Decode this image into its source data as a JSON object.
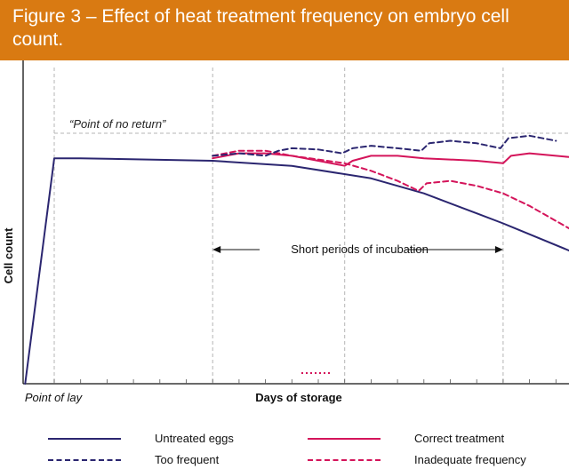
{
  "title": "Figure 3 – Effect of heat treatment frequency on embryo cell count.",
  "colors": {
    "title_bg": "#d97a12",
    "navy": "#2b2670",
    "red": "#d4145a",
    "grid": "#b5b5b5"
  },
  "chart_data": {
    "type": "line",
    "title": "Figure 3 – Effect of heat treatment frequency on embryo cell count.",
    "xlabel": "Days of storage",
    "ylabel": "Cell count",
    "x_tick_label": "Point of lay",
    "xlim": [
      0,
      20
    ],
    "ylim": [
      0,
      100
    ],
    "threshold": {
      "label": "“Point of no return”",
      "y": 100
    },
    "annotation": {
      "label": "Short periods of incubation",
      "x_start": 6,
      "x_end": 17
    },
    "grid": true,
    "legend_position": "bottom",
    "series": [
      {
        "name": "Untreated eggs",
        "color": "#2b2670",
        "dash": "solid",
        "points": [
          [
            -1.1,
            0
          ],
          [
            0,
            90
          ],
          [
            1,
            90
          ],
          [
            6,
            89
          ],
          [
            9,
            87
          ],
          [
            12,
            82
          ],
          [
            14,
            76
          ],
          [
            16,
            68
          ],
          [
            17,
            64
          ],
          [
            20,
            51
          ]
        ]
      },
      {
        "name": "Correct treatment",
        "color": "#d4145a",
        "dash": "solid",
        "points": [
          [
            6,
            90
          ],
          [
            7,
            92
          ],
          [
            8,
            92
          ],
          [
            9,
            91
          ],
          [
            10,
            89
          ],
          [
            11,
            87
          ],
          [
            11.3,
            89
          ],
          [
            12,
            91
          ],
          [
            13,
            91
          ],
          [
            14,
            90
          ],
          [
            16,
            89
          ],
          [
            17,
            88
          ],
          [
            17.3,
            91
          ],
          [
            18,
            92
          ],
          [
            19,
            91
          ],
          [
            20,
            90
          ]
        ]
      },
      {
        "name": "Too frequent",
        "color": "#2b2670",
        "dash": "dashed",
        "points": [
          [
            6,
            91
          ],
          [
            7,
            92
          ],
          [
            8,
            91
          ],
          [
            8.5,
            93
          ],
          [
            9,
            94
          ],
          [
            10,
            93.5
          ],
          [
            10.9,
            92
          ],
          [
            11.3,
            94
          ],
          [
            12,
            95
          ],
          [
            13,
            94
          ],
          [
            13.9,
            93
          ],
          [
            14.2,
            96
          ],
          [
            15,
            97
          ],
          [
            16,
            96
          ],
          [
            16.9,
            94
          ],
          [
            17.2,
            98
          ],
          [
            18,
            99
          ],
          [
            19,
            97
          ]
        ]
      },
      {
        "name": "Inadequate frequency",
        "color": "#d4145a",
        "dash": "dashed",
        "points": [
          [
            6,
            91
          ],
          [
            7,
            93
          ],
          [
            8,
            93
          ],
          [
            9,
            91
          ],
          [
            11,
            88
          ],
          [
            12,
            85
          ],
          [
            13,
            81
          ],
          [
            13.8,
            77
          ],
          [
            14.1,
            80
          ],
          [
            15,
            81
          ],
          [
            16,
            79
          ],
          [
            17,
            76
          ],
          [
            18,
            71
          ],
          [
            19,
            65
          ],
          [
            20,
            59
          ]
        ]
      }
    ]
  },
  "legend": [
    {
      "label": "Untreated eggs",
      "color": "#2b2670",
      "dash": "solid"
    },
    {
      "label": "Correct treatment",
      "color": "#d4145a",
      "dash": "solid"
    },
    {
      "label": "Too frequent",
      "color": "#2b2670",
      "dash": "dashed"
    },
    {
      "label": "Inadequate frequency",
      "color": "#d4145a",
      "dash": "dashed"
    }
  ]
}
